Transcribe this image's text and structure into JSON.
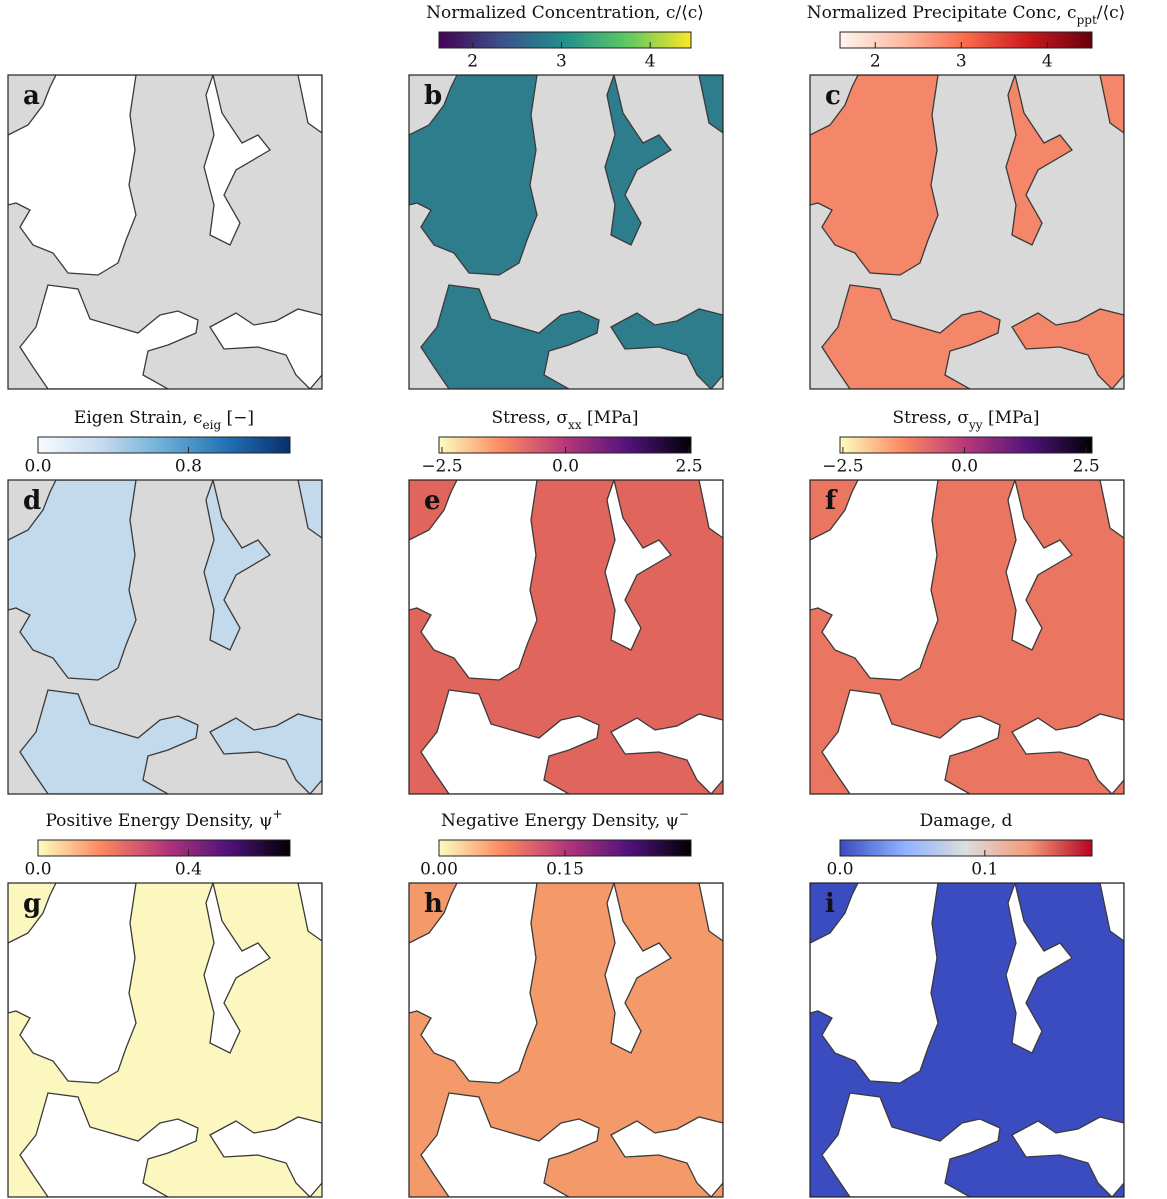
{
  "chart_data": [
    {
      "type": "field-map",
      "label": "a",
      "fill": "#ffffff",
      "background": "#d9d9d9"
    },
    {
      "type": "field-map",
      "label": "b",
      "fill": "#2e7d8c",
      "background": "#d9d9d9",
      "colorbar_title": [
        {
          "text": "Normalized Concentration,  c/⟨c⟩"
        }
      ],
      "colors": [
        "#440154",
        "#3b528b",
        "#21918c",
        "#5ec962",
        "#fde725"
      ],
      "clim": [
        1.62,
        4.46
      ],
      "cticks": [
        2,
        3,
        4
      ]
    },
    {
      "type": "field-map",
      "label": "c",
      "fill": "#f4866a",
      "background": "#d9d9d9",
      "colorbar_title": [
        {
          "text": "Normalized Precipitate Conc,  c"
        },
        {
          "text": "ppt",
          "sub": true
        },
        {
          "text": "/⟨c⟩"
        }
      ],
      "colors": [
        "#fff5f0",
        "#fcbba1",
        "#fb6a4a",
        "#cb181d",
        "#67000d"
      ],
      "clim": [
        1.59,
        4.52
      ],
      "cticks": [
        2,
        3,
        4
      ]
    },
    {
      "type": "field-map",
      "label": "d",
      "fill": "#c3d9ec",
      "background": "#d9d9d9",
      "colorbar_title": [
        {
          "text": "Eigen Strain,  ϵ"
        },
        {
          "text": "eig",
          "sub": true
        },
        {
          "text": " [−]"
        }
      ],
      "colors": [
        "#f7fbff",
        "#c6dbef",
        "#6baed6",
        "#2171b5",
        "#08306b"
      ],
      "clim": [
        0,
        1.34
      ],
      "cticks": [
        {
          "value": 0,
          "label": "0.0"
        },
        0.8
      ]
    },
    {
      "type": "field-map",
      "label": "e",
      "fill": "#ffffff",
      "background": "#df655d",
      "colorbar_title": [
        {
          "text": "Stress,  σ"
        },
        {
          "text": "xx",
          "sub": true
        },
        {
          "text": " [MPa]"
        }
      ],
      "colors": [
        "#fcfdbf",
        "#fc8961",
        "#b73779",
        "#51127c",
        "#000004"
      ],
      "clim": [
        -2.56,
        2.54
      ],
      "cticks": [
        {
          "value": -2.5,
          "label": "−2.5"
        },
        {
          "value": 0,
          "label": "0.0"
        },
        2.5
      ]
    },
    {
      "type": "field-map",
      "label": "f",
      "fill": "#ffffff",
      "background": "#ea7560",
      "colorbar_title": [
        {
          "text": "Stress,  σ"
        },
        {
          "text": "yy",
          "sub": true
        },
        {
          "text": " [MPa]"
        }
      ],
      "colors": [
        "#fcfdbf",
        "#fc8961",
        "#b73779",
        "#51127c",
        "#000004"
      ],
      "clim": [
        -2.56,
        2.62
      ],
      "cticks": [
        {
          "value": -2.5,
          "label": "−2.5"
        },
        {
          "value": 0,
          "label": "0.0"
        },
        2.5
      ]
    },
    {
      "type": "field-map",
      "label": "g",
      "fill": "#ffffff",
      "background": "#fbf7bf",
      "colorbar_title": [
        {
          "text": "Positive Energy Density,  ψ"
        },
        {
          "text": "+",
          "sup": true
        }
      ],
      "colors": [
        "#fcfdbf",
        "#fc8961",
        "#b73779",
        "#51127c",
        "#000004"
      ],
      "clim": [
        0,
        0.67
      ],
      "cticks": [
        {
          "value": 0,
          "label": "0.0"
        },
        0.4
      ]
    },
    {
      "type": "field-map",
      "label": "h",
      "fill": "#ffffff",
      "background": "#f49a6a",
      "colorbar_title": [
        {
          "text": "Negative Energy Density,  ψ"
        },
        {
          "text": "−",
          "sup": true
        }
      ],
      "colors": [
        "#fcfdbf",
        "#fc8961",
        "#b73779",
        "#51127c",
        "#000004"
      ],
      "clim": [
        0,
        0.3
      ],
      "cticks": [
        {
          "value": 0,
          "label": "0.00"
        },
        0.15
      ]
    },
    {
      "type": "field-map",
      "label": "i",
      "fill": "#ffffff",
      "background": "#3b4cc0",
      "colorbar_title": [
        {
          "text": "Damage,  d"
        }
      ],
      "colors": [
        "#3b4cc0",
        "#8db0fe",
        "#dddddd",
        "#f49a7b",
        "#b40426"
      ],
      "clim": [
        0,
        0.174
      ],
      "cticks": [
        {
          "value": 0,
          "label": "0.0"
        },
        0.1
      ]
    }
  ]
}
